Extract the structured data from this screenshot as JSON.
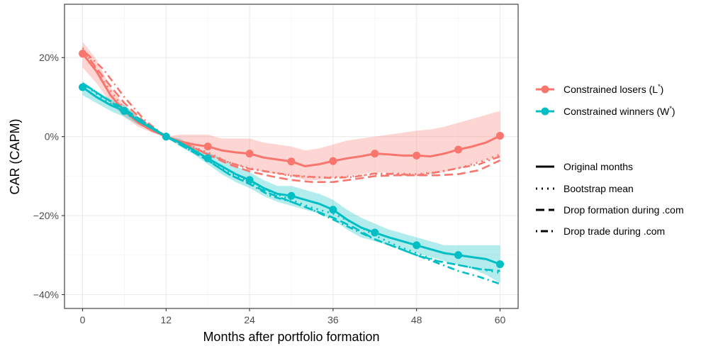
{
  "chart_data": {
    "type": "line",
    "xlabel": "Months after portfolio formation",
    "ylabel": "CAR (CAPM)",
    "xlim": [
      -2.6,
      62.6
    ],
    "ylim": [
      -43.5,
      33.5
    ],
    "x_ticks": [
      0,
      12,
      24,
      36,
      48,
      60
    ],
    "x_tick_labels": [
      "0",
      "12",
      "24",
      "36",
      "48",
      "60"
    ],
    "y_ticks": [
      20,
      0,
      -20,
      -40
    ],
    "y_tick_labels": [
      "20%",
      "0%",
      "−20%",
      "−40%"
    ],
    "grid": true,
    "legend_position": "right",
    "groups": [
      {
        "name": "Constrained losers (L*)",
        "label_main": "Constrained losers (L",
        "label_sup": "*",
        "label_end": ")",
        "color": "#F8766D",
        "band_color": "#F8766D",
        "series": {
          "original": {
            "x": [
              0,
              2,
              4,
              6,
              8,
              10,
              12,
              14,
              16,
              18,
              20,
              22,
              24,
              26,
              28,
              30,
              32,
              34,
              36,
              38,
              40,
              42,
              44,
              46,
              48,
              50,
              52,
              54,
              56,
              58,
              60
            ],
            "y": [
              21,
              16.5,
              10.5,
              6.5,
              3.5,
              1.5,
              0,
              -1.2,
              -2,
              -2.5,
              -3.5,
              -4,
              -4.3,
              -5.3,
              -5.8,
              -6.3,
              -7.5,
              -7,
              -6.2,
              -5.5,
              -5,
              -4.3,
              -4.5,
              -4.8,
              -4.8,
              -5,
              -4.3,
              -3.3,
              -2.5,
              -1.5,
              0.2
            ]
          },
          "markers_x": [
            0,
            6,
            12,
            18,
            24,
            30,
            36,
            42,
            48,
            54,
            60
          ],
          "markers_y": [
            21,
            6.5,
            0,
            -2.5,
            -4.3,
            -6.3,
            -6.2,
            -4.3,
            -4.8,
            -3.3,
            0.2
          ],
          "band_lower": [
            17.5,
            13.5,
            8.5,
            5,
            2.5,
            1,
            0,
            -2,
            -3.5,
            -4.5,
            -6,
            -7.5,
            -8,
            -9,
            -9.5,
            -10,
            -11,
            -11,
            -10.5,
            -10,
            -9.5,
            -9,
            -9.2,
            -9.5,
            -9.5,
            -9.5,
            -9,
            -8,
            -7,
            -6,
            -5.5
          ],
          "band_upper": [
            24,
            19.5,
            12.5,
            8,
            5,
            2.5,
            0,
            0.5,
            0.5,
            0.5,
            -0.5,
            -0.5,
            -0.5,
            -1.5,
            -2,
            -2.5,
            -3.5,
            -3,
            -2,
            -1,
            -0.5,
            0,
            0.5,
            1,
            1.5,
            1.8,
            2.5,
            3.5,
            4.5,
            5.5,
            6.5
          ],
          "bootstrap": {
            "x": [
              0,
              3,
              6,
              9,
              12,
              15,
              18,
              21,
              24,
              27,
              30,
              33,
              36,
              39,
              42,
              45,
              48,
              51,
              54,
              57,
              60
            ],
            "y": [
              22.5,
              14,
              7,
              3,
              0,
              -2,
              -4,
              -6.5,
              -8,
              -9,
              -10,
              -10.3,
              -10.3,
              -10,
              -9.5,
              -9.3,
              -9.5,
              -9,
              -8,
              -6.5,
              -4.5
            ]
          },
          "drop_formation": {
            "x": [
              0,
              3,
              6,
              9,
              12,
              15,
              18,
              21,
              24,
              27,
              30,
              33,
              36,
              39,
              42,
              45,
              48,
              51,
              54,
              57,
              60
            ],
            "y": [
              22,
              15,
              8.5,
              3.5,
              0,
              -2,
              -4.5,
              -7,
              -8.8,
              -10,
              -11,
              -11.5,
              -11.5,
              -10.8,
              -10,
              -9.8,
              -9.8,
              -9.8,
              -9.5,
              -8.5,
              -6
            ]
          },
          "drop_trade": {
            "x": [
              0,
              3,
              6,
              9,
              12,
              15,
              18,
              21,
              24,
              27,
              30,
              33,
              36,
              39,
              42,
              45,
              48,
              51,
              54,
              57,
              60
            ],
            "y": [
              22,
              17,
              10,
              4,
              0,
              -2.5,
              -4.5,
              -6.5,
              -8.2,
              -9,
              -9.8,
              -10.2,
              -10.5,
              -10.2,
              -9.3,
              -9.5,
              -9.8,
              -9,
              -8,
              -7,
              -5
            ]
          }
        }
      },
      {
        "name": "Constrained winners (W*)",
        "label_main": "Constrained winners (W",
        "label_sup": "*",
        "label_end": ")",
        "color": "#00BFC4",
        "band_color": "#00BFC4",
        "series": {
          "original": {
            "x": [
              0,
              2,
              4,
              6,
              8,
              10,
              12,
              14,
              16,
              18,
              20,
              22,
              24,
              26,
              28,
              30,
              32,
              34,
              36,
              38,
              40,
              42,
              44,
              46,
              48,
              50,
              52,
              54,
              56,
              58,
              60
            ],
            "y": [
              12.5,
              10,
              8,
              6.5,
              4,
              2,
              0,
              -1.5,
              -3.5,
              -5.5,
              -7.5,
              -9.5,
              -11,
              -13,
              -14.5,
              -15,
              -16,
              -17,
              -18.5,
              -21,
              -23,
              -24.3,
              -25.5,
              -26.5,
              -27.5,
              -28.5,
              -29.5,
              -30,
              -30.5,
              -31,
              -32.3
            ]
          },
          "markers_x": [
            0,
            6,
            12,
            18,
            24,
            30,
            36,
            42,
            48,
            54,
            60
          ],
          "markers_y": [
            12.5,
            6.5,
            0,
            -5.5,
            -11,
            -15,
            -18.5,
            -24.3,
            -27.5,
            -30,
            -32.3
          ],
          "band_lower": [
            10.5,
            8.5,
            6.5,
            5,
            3,
            1.5,
            0,
            -2.5,
            -4.5,
            -7,
            -9.5,
            -11.5,
            -13,
            -15,
            -16.5,
            -17.5,
            -18.5,
            -19.5,
            -21,
            -23.5,
            -25.5,
            -26.5,
            -27.5,
            -28.5,
            -29.5,
            -30.5,
            -31.5,
            -32.5,
            -33.5,
            -35,
            -37
          ],
          "band_upper": [
            14,
            11.5,
            9.5,
            8,
            5,
            2.5,
            0,
            -0.5,
            -2.5,
            -4,
            -5.5,
            -7.5,
            -9,
            -11,
            -12.5,
            -12.5,
            -13.5,
            -14.5,
            -16,
            -18.5,
            -20.5,
            -22,
            -23.5,
            -24.5,
            -25.5,
            -26.5,
            -27.5,
            -27.5,
            -27.5,
            -27.5,
            -27.5
          ],
          "bootstrap": {
            "x": [
              0,
              3,
              6,
              9,
              12,
              15,
              18,
              21,
              24,
              27,
              30,
              33,
              36,
              39,
              42,
              45,
              48,
              51,
              54,
              57,
              60
            ],
            "y": [
              13.5,
              9.5,
              6,
              3,
              0,
              -3,
              -6,
              -9,
              -11.5,
              -14,
              -16,
              -18,
              -19.5,
              -22,
              -25,
              -27.5,
              -29.5,
              -31.5,
              -32.5,
              -33.5,
              -34.5
            ]
          },
          "drop_formation": {
            "x": [
              0,
              3,
              6,
              9,
              12,
              15,
              18,
              21,
              24,
              27,
              30,
              33,
              36,
              39,
              42,
              45,
              48,
              51,
              54,
              57,
              60
            ],
            "y": [
              13.5,
              10,
              7,
              3.5,
              0,
              -3,
              -6,
              -9.5,
              -12,
              -14.5,
              -16.5,
              -18.5,
              -20.5,
              -23,
              -26,
              -28,
              -30,
              -31.5,
              -32.5,
              -33.5,
              -34
            ]
          },
          "drop_trade": {
            "x": [
              0,
              3,
              6,
              9,
              12,
              15,
              18,
              21,
              24,
              27,
              30,
              33,
              36,
              39,
              42,
              45,
              48,
              51,
              54,
              57,
              60
            ],
            "y": [
              13.5,
              10,
              6.5,
              3.5,
              0,
              -3,
              -6,
              -9.5,
              -12,
              -15,
              -16.5,
              -18.5,
              -21,
              -23.5,
              -26,
              -28,
              -30,
              -32,
              -34,
              -35.5,
              -37.3
            ]
          }
        }
      }
    ],
    "line_legend": [
      {
        "key": "original",
        "label": "Original months",
        "dash": ""
      },
      {
        "key": "bootstrap",
        "label": "Bootstrap mean",
        "dash": "2 6"
      },
      {
        "key": "drop_formation",
        "label": "Drop formation during .com",
        "dash": "12 6"
      },
      {
        "key": "drop_trade",
        "label": "Drop trade during .com",
        "dash": "2 5 10 5"
      }
    ]
  }
}
